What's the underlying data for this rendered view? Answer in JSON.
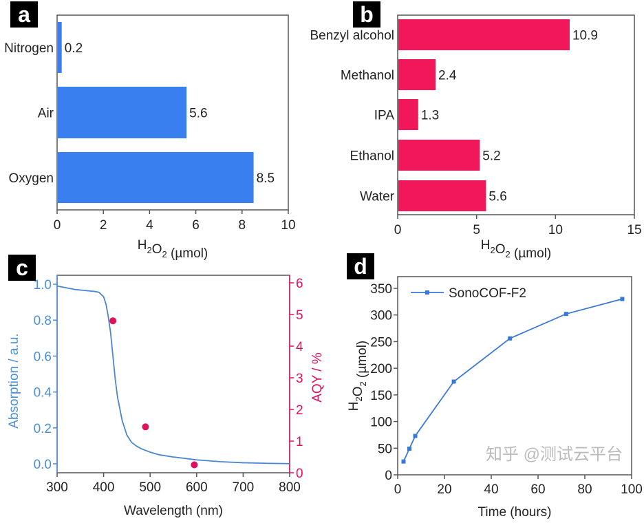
{
  "chart_data": [
    {
      "panel": "a",
      "type": "bar",
      "orientation": "horizontal",
      "categories": [
        "Nitrogen",
        "Air",
        "Oxygen"
      ],
      "values": [
        0.2,
        5.6,
        8.5
      ],
      "data_labels": [
        "0.2",
        "5.6",
        "8.5"
      ],
      "xlabel": "H₂O₂ (µmol)",
      "xlim": [
        0,
        10
      ],
      "xticks": [
        "0",
        "2",
        "4",
        "6",
        "8",
        "10"
      ],
      "color": "#3a7ff0",
      "grid": false
    },
    {
      "panel": "b",
      "type": "bar",
      "orientation": "horizontal",
      "categories": [
        "Benzyl alcohol",
        "Methanol",
        "IPA",
        "Ethanol",
        "Water"
      ],
      "values": [
        10.9,
        2.4,
        1.3,
        5.2,
        5.6
      ],
      "data_labels": [
        "10.9",
        "2.4",
        "1.3",
        "5.2",
        "5.6"
      ],
      "xlabel": "H₂O₂ (µmol)",
      "xlim": [
        0,
        15
      ],
      "xticks": [
        "0",
        "5",
        "10",
        "15"
      ],
      "color": "#f0185a",
      "grid": false
    },
    {
      "panel": "c",
      "type": "line",
      "xlabel": "Wavelength (nm)",
      "ylabel": "Absorption / a.u.",
      "y2label": "AQY / %",
      "xlim": [
        300,
        800
      ],
      "ylim": [
        -0.05,
        1.05
      ],
      "y2lim": [
        0,
        6.2
      ],
      "xticks": [
        "300",
        "400",
        "500",
        "600",
        "700",
        "800"
      ],
      "yticks": [
        "0.0",
        "0.2",
        "0.4",
        "0.6",
        "0.8",
        "1.0"
      ],
      "y2ticks": [
        "0",
        "1",
        "2",
        "3",
        "4",
        "5",
        "6"
      ],
      "series": [
        {
          "type": "line",
          "axis": "left",
          "color": "#4a86d0",
          "x": [
            300,
            320,
            340,
            360,
            380,
            390,
            400,
            405,
            410,
            415,
            420,
            425,
            430,
            440,
            450,
            460,
            470,
            480,
            500,
            520,
            550,
            600,
            650,
            700,
            750,
            800
          ],
          "y": [
            0.99,
            0.98,
            0.97,
            0.965,
            0.96,
            0.955,
            0.93,
            0.89,
            0.82,
            0.73,
            0.6,
            0.47,
            0.37,
            0.24,
            0.16,
            0.12,
            0.1,
            0.085,
            0.065,
            0.05,
            0.038,
            0.022,
            0.012,
            0.006,
            0.003,
            0.001
          ]
        },
        {
          "type": "scatter",
          "axis": "right",
          "color": "#e0105a",
          "x": [
            420,
            490,
            595
          ],
          "y": [
            4.8,
            1.45,
            0.25
          ]
        }
      ],
      "axis_colors": {
        "left": "#4a90d8",
        "right": "#e0105a"
      },
      "grid": false
    },
    {
      "panel": "d",
      "type": "line",
      "xlabel": "Time (hours)",
      "ylabel": "H₂O₂ (µmol)",
      "xlim": [
        0,
        100
      ],
      "ylim": [
        0,
        375
      ],
      "xticks": [
        "0",
        "20",
        "40",
        "60",
        "80",
        "100"
      ],
      "yticks": [
        "0",
        "50",
        "100",
        "150",
        "200",
        "250",
        "300",
        "350"
      ],
      "series": [
        {
          "name": "SonoCOF-F2",
          "color": "#3a78d8",
          "x": [
            2.5,
            5,
            7.5,
            24,
            48,
            72,
            96
          ],
          "y": [
            25,
            49,
            73,
            175,
            256,
            302,
            330
          ]
        }
      ],
      "legend": "top-left",
      "grid": false
    }
  ],
  "panel_labels": [
    "a",
    "b",
    "c",
    "d"
  ],
  "watermark": "知乎 @测试云平台"
}
